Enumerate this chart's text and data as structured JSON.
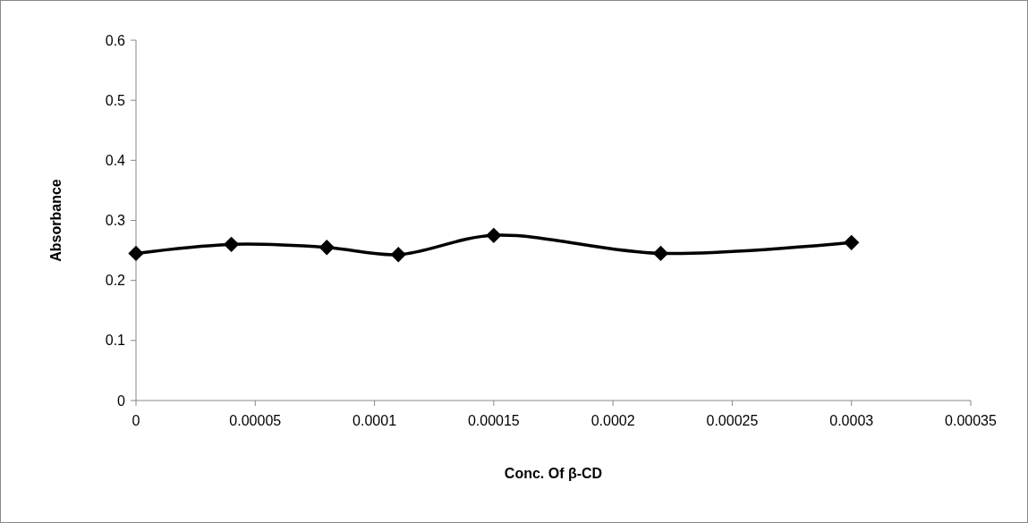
{
  "chart_data": {
    "type": "line",
    "xlabel": "Conc. Of β-CD",
    "ylabel": "Absorbance",
    "x": [
      0,
      4e-05,
      8e-05,
      0.00011,
      0.00015,
      0.00022,
      0.0003
    ],
    "series": [
      {
        "color": "#000000",
        "values": [
          0.245,
          0.26,
          0.255,
          0.243,
          0.275,
          0.245,
          0.263
        ]
      }
    ],
    "xlim": [
      0,
      0.00035
    ],
    "xticks": [
      0,
      {
        "value": 5e-05,
        "label": "0.00005"
      },
      0.0001,
      0.00015,
      0.0002,
      0.00025,
      0.0003,
      0.00035
    ],
    "ylim": [
      0,
      0.6
    ],
    "yticks": [
      0,
      0.1,
      0.2,
      0.3,
      0.4,
      0.5,
      0.6
    ],
    "grid": false,
    "marker": "diamond",
    "line_style": "solid"
  }
}
